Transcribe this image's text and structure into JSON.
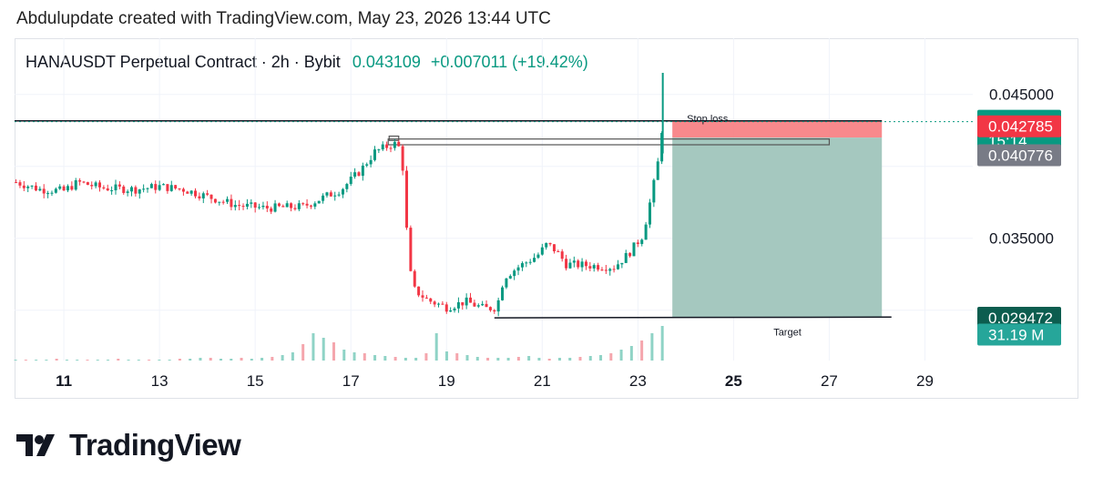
{
  "caption": "Abdulupdate created with TradingView.com, May 23, 2026 13:44 UTC",
  "header": {
    "symbol": "HANAUSDT Perpetual Contract · 2h · Bybit",
    "last": "0.043109",
    "change": "+0.007011 (+19.42%)"
  },
  "branding": {
    "logo_text": "TradingView"
  },
  "colors": {
    "up": "#089981",
    "down": "#f23645",
    "up_vol": "#8fd3c6",
    "down_vol": "#f5a6ad"
  },
  "chart_data": {
    "type": "candlestick",
    "x_ticks": [
      {
        "label": "11",
        "x": 11,
        "bold": true
      },
      {
        "label": "13",
        "x": 13
      },
      {
        "label": "15",
        "x": 15
      },
      {
        "label": "17",
        "x": 17
      },
      {
        "label": "19",
        "x": 19
      },
      {
        "label": "21",
        "x": 21
      },
      {
        "label": "23",
        "x": 23
      },
      {
        "label": "25",
        "x": 25,
        "bold": true
      },
      {
        "label": "27",
        "x": 27
      },
      {
        "label": "29",
        "x": 29
      }
    ],
    "y_ticks": [
      {
        "label": "0.045000",
        "y": 0.045
      },
      {
        "label": "0.035000",
        "y": 0.035
      }
    ],
    "ylim": [
      0.0265,
      0.0465
    ],
    "xlim": [
      9.97,
      30.0
    ],
    "price_series": [
      [
        10.0,
        0.0389
      ],
      [
        10.5,
        0.0384
      ],
      [
        11.0,
        0.0383
      ],
      [
        11.3,
        0.0389
      ],
      [
        11.8,
        0.0385
      ],
      [
        12.5,
        0.0384
      ],
      [
        13.0,
        0.0386
      ],
      [
        13.5,
        0.0384
      ],
      [
        14.0,
        0.0379
      ],
      [
        14.6,
        0.0373
      ],
      [
        15.2,
        0.0371
      ],
      [
        16.0,
        0.0372
      ],
      [
        16.8,
        0.0384
      ],
      [
        17.2,
        0.0397
      ],
      [
        17.5,
        0.041
      ],
      [
        17.9,
        0.0416
      ],
      [
        18.05,
        0.0412
      ],
      [
        18.12,
        0.0385
      ],
      [
        18.2,
        0.0335
      ],
      [
        18.3,
        0.0315
      ],
      [
        18.6,
        0.0307
      ],
      [
        19.0,
        0.0302
      ],
      [
        19.4,
        0.0306
      ],
      [
        19.8,
        0.0301
      ],
      [
        20.05,
        0.0302
      ],
      [
        20.2,
        0.0323
      ],
      [
        20.5,
        0.033
      ],
      [
        20.9,
        0.0338
      ],
      [
        21.1,
        0.0346
      ],
      [
        21.3,
        0.0341
      ],
      [
        21.5,
        0.0332
      ],
      [
        22.0,
        0.0331
      ],
      [
        22.5,
        0.033
      ],
      [
        22.8,
        0.0339
      ],
      [
        23.1,
        0.0352
      ],
      [
        23.3,
        0.0382
      ],
      [
        23.42,
        0.0403
      ],
      [
        23.52,
        0.04311
      ]
    ],
    "volume_heights": [
      1,
      1,
      1,
      1,
      2,
      1,
      1,
      1,
      1,
      1,
      2,
      1,
      1,
      1,
      1,
      1,
      2,
      2,
      3,
      3,
      2,
      2,
      3,
      2,
      3,
      4,
      6,
      9,
      18,
      30,
      25,
      20,
      12,
      9,
      8,
      6,
      5,
      4,
      3,
      3,
      8,
      30,
      10,
      8,
      6,
      4,
      3,
      3,
      3,
      4,
      5,
      3,
      2,
      3,
      3,
      4,
      5,
      6,
      8,
      12,
      16,
      22,
      30,
      38
    ],
    "position_tool": {
      "stop_label": "Stop loss",
      "target_label": "Target",
      "stop_price": 0.0432,
      "entry_price": 0.042,
      "target_price": 0.02952,
      "x_start": 23.72,
      "x_end": 28.1
    },
    "annotations": {
      "resistance_y": 0.04316,
      "support_line": {
        "x1": 20.0,
        "y1": 0.02947,
        "x2": 28.3,
        "y2": 0.02952
      },
      "box_big": {
        "x1": 17.78,
        "y1": 0.0415,
        "x2": 27.0,
        "y2": 0.0419
      },
      "box_small": {
        "x1": 17.8,
        "y1": 0.0418,
        "x2": 18.0,
        "y2": 0.0421
      }
    },
    "price_labels": [
      {
        "text": "0.043109",
        "sub": "15:14",
        "y": 0.043109,
        "color": "#089981"
      },
      {
        "text": "0.042785",
        "y": 0.042785,
        "color": "#f23645"
      },
      {
        "text": "0.040776",
        "y": 0.040776,
        "color": "#787b86"
      },
      {
        "text": "0.029472",
        "y": 0.029472,
        "color": "#0c5d4f"
      },
      {
        "text": "31.19 M",
        "y": 0.0283,
        "color": "#26a69a"
      }
    ]
  }
}
